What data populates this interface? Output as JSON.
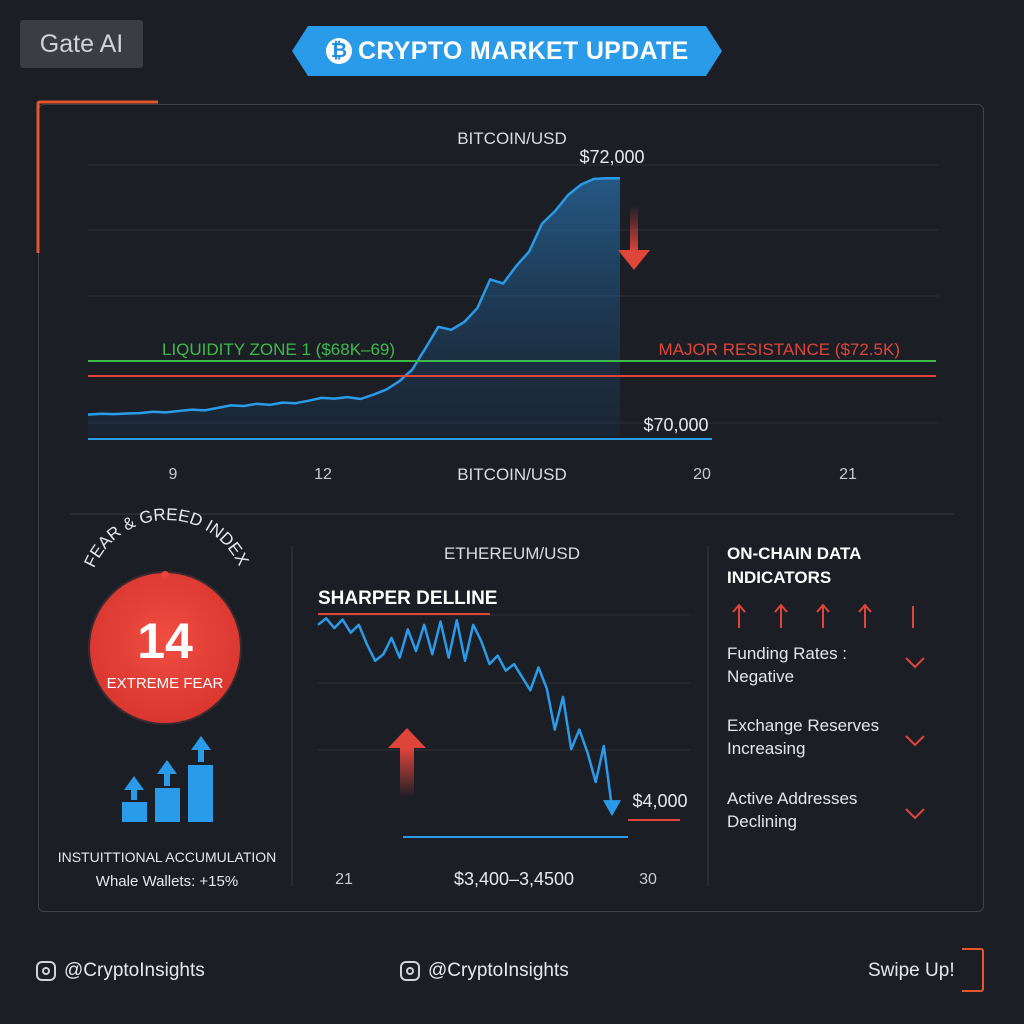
{
  "brand": {
    "label": "Gate AI"
  },
  "header": {
    "title": "CRYPTO MARKET UPDATE",
    "icon": "bitcoin-icon",
    "badge_glyph": "₿"
  },
  "colors": {
    "background": "#1b1e25",
    "accent_blue": "#2a9be8",
    "support_green": "#3dbb4a",
    "resistance_red": "#e0453a",
    "fear_red": "#e8423a",
    "highlight_orange": "#e4572e"
  },
  "btc_chart": {
    "title_top": "BITCOIN/USD",
    "title_bottom": "BITCOIN/USD",
    "peak_label": "$72,000",
    "base_label": "$70,000",
    "liquidity_label": "LIQUIDITY ZONE 1 ($68K–69)",
    "resistance_label": "MAJOR RESISTANCE ($72.5K)",
    "x_ticks": [
      "9",
      "12",
      "20",
      "21"
    ]
  },
  "fear_greed": {
    "title": "FEAR & GREED INDEX",
    "value": "14",
    "label": "EXTREME FEAR",
    "institutional_title": "INSTUITTIONAL ACCUMULATION",
    "whale_label": "Whale Wallets: +15%"
  },
  "eth_chart": {
    "title": "ETHEREUM/USD",
    "decline_label": "SHARPER DELLINE",
    "price_label": "$4,000",
    "range_label": "$3,400–3,4500",
    "x_ticks": [
      "21",
      "30"
    ]
  },
  "onchain": {
    "title_line1": "ON-CHAIN DATA",
    "title_line2": "INDICATORS",
    "items": [
      {
        "line1": "Funding Rates :",
        "line2": "Negative"
      },
      {
        "line1": "Exchange Reserves",
        "line2": "Increasing"
      },
      {
        "line1": "Active Addresses",
        "line2": "Declining"
      }
    ]
  },
  "footer": {
    "handle_left": "@CryptoInsights",
    "handle_mid": "@CryptoInsights",
    "swipe": "Swipe Up!"
  },
  "chart_data": [
    {
      "type": "area",
      "title": "BITCOIN/USD",
      "x_tick_labels": [
        "9",
        "12",
        "20",
        "21"
      ],
      "series": [
        {
          "values": [
            69.6,
            69.67,
            69.64,
            69.68,
            69.71,
            69.8,
            69.76,
            69.86,
            69.96,
            69.9,
            70.08,
            70.26,
            70.22,
            70.38,
            70.3,
            70.46,
            70.42,
            70.6,
            70.8,
            70.75,
            70.86,
            70.72,
            71.04,
            71.4,
            72.0,
            72.84,
            74.35,
            75.9,
            75.68,
            76.24,
            77.23,
            79.3,
            79.0,
            80.25,
            81.3,
            83.3,
            84.2,
            85.35,
            86.1,
            86.5,
            86.55,
            86.55
          ]
        }
      ],
      "reference_lines": [
        {
          "label": "LIQUIDITY ZONE 1 ($68K–69)",
          "color": "#3dbb4a"
        },
        {
          "label": "MAJOR RESISTANCE ($72.5K)",
          "color": "#e0453a"
        }
      ],
      "annotations": [
        "$72,000",
        "$70,000"
      ]
    },
    {
      "type": "line",
      "title": "ETHEREUM/USD",
      "x_tick_labels": [
        "21",
        "30"
      ],
      "series": [
        {
          "values": [
            4055,
            4065,
            4050,
            4063,
            4043,
            4055,
            4025,
            4000,
            4010,
            4035,
            4005,
            4048,
            4015,
            4055,
            4010,
            4060,
            4005,
            4062,
            4000,
            4055,
            4030,
            3995,
            4008,
            3985,
            3995,
            3975,
            3955,
            3990,
            3958,
            3895,
            3945,
            3865,
            3895,
            3860,
            3815,
            3870,
            3775
          ]
        }
      ],
      "annotations": [
        "SHARPER DELLINE",
        "$4,000",
        "$3,400–3,4500"
      ]
    }
  ]
}
